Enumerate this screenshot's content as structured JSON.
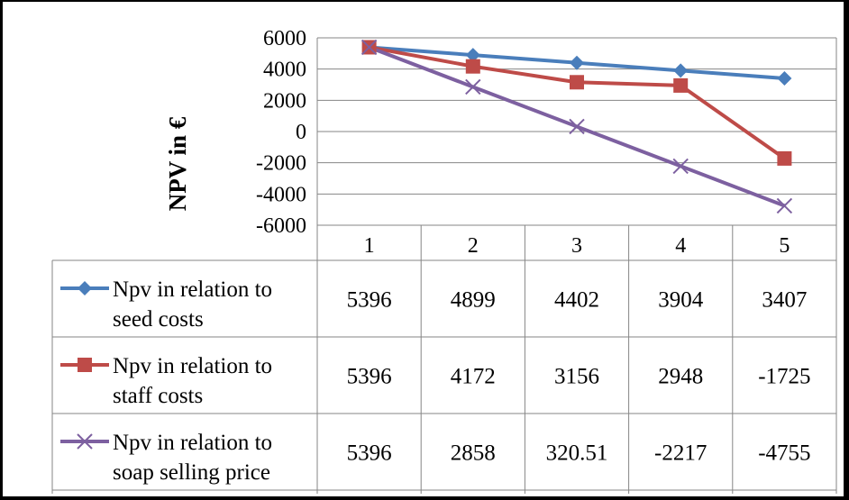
{
  "chart_data": {
    "type": "line",
    "title": "",
    "xlabel": "",
    "ylabel": "NPV in €",
    "categories": [
      "1",
      "2",
      "3",
      "4",
      "5"
    ],
    "ylim": [
      -6000,
      6000
    ],
    "yticks": [
      6000,
      4000,
      2000,
      0,
      -2000,
      -4000,
      -6000
    ],
    "yticklabels": [
      "6000",
      "4000",
      "2000",
      "0",
      "-2000",
      "-4000",
      "-6000"
    ],
    "grid": true,
    "legend": "data-table",
    "series": [
      {
        "name_lines": [
          "Npv in relation to",
          "seed costs"
        ],
        "values": [
          5396,
          4899,
          4402,
          3904,
          3407
        ],
        "labels": [
          "5396",
          "4899",
          "4402",
          "3904",
          "3407"
        ],
        "color": "#4A7EBB",
        "marker": "diamond"
      },
      {
        "name_lines": [
          "Npv in relation to",
          "staff costs"
        ],
        "values": [
          5396,
          4172,
          3156,
          2948,
          -1725
        ],
        "labels": [
          "5396",
          "4172",
          "3156",
          "2948",
          "-1725"
        ],
        "color": "#BE4B48",
        "marker": "square"
      },
      {
        "name_lines": [
          "Npv in relation to",
          "soap selling price"
        ],
        "values": [
          5396,
          2858,
          320.51,
          -2217,
          -4755
        ],
        "labels": [
          "5396",
          "2858",
          "320.51",
          "-2217",
          "-4755"
        ],
        "color": "#7D60A0",
        "marker": "x"
      }
    ]
  }
}
